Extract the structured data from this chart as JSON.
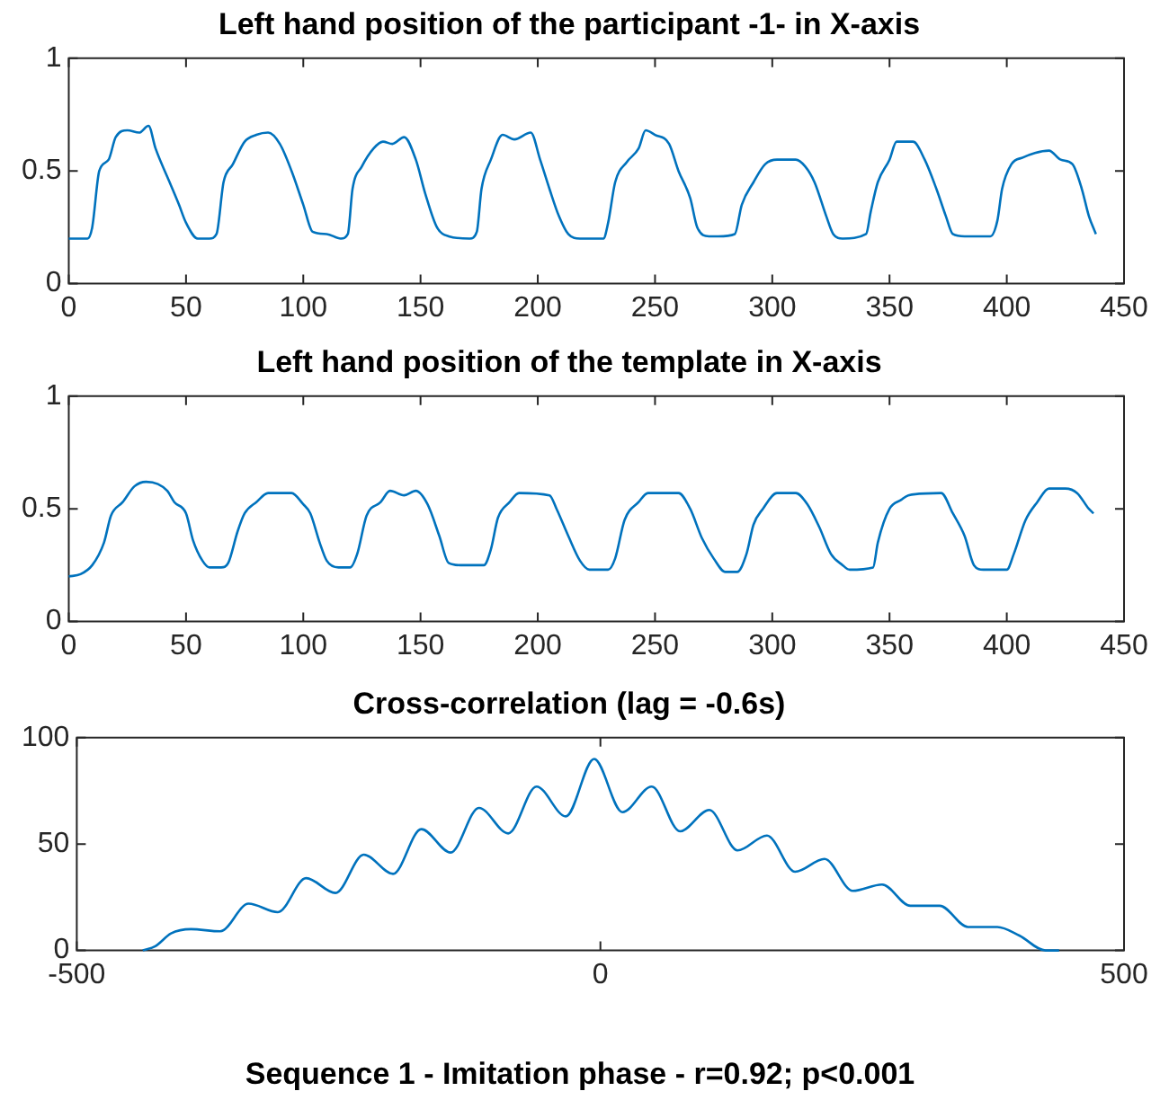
{
  "chart_data": [
    {
      "type": "line",
      "title": "Left hand position of the participant -1- in X-axis",
      "xlim": [
        0,
        450
      ],
      "ylim": [
        0,
        1
      ],
      "xticks": [
        0,
        50,
        100,
        150,
        200,
        250,
        300,
        350,
        400,
        450
      ],
      "yticks": [
        0,
        0.5,
        1
      ],
      "series": [
        {
          "color": "#0072bd",
          "x": [
            0,
            8,
            10,
            13,
            17,
            20,
            25,
            30,
            34,
            37,
            43,
            47,
            50,
            55,
            60,
            63,
            66,
            70,
            75,
            80,
            85,
            90,
            95,
            100,
            104,
            110,
            116,
            119,
            121,
            125,
            130,
            134,
            138,
            143,
            148,
            152,
            157,
            162,
            171,
            174,
            176,
            180,
            185,
            190,
            197,
            201,
            205,
            209,
            213,
            218,
            228,
            230,
            233,
            238,
            243,
            246,
            250,
            256,
            260,
            265,
            268,
            273,
            277,
            284,
            287,
            292,
            297,
            302,
            310,
            314,
            318,
            323,
            326,
            330,
            340,
            342,
            345,
            350,
            353,
            360,
            365,
            370,
            374,
            377,
            382,
            393,
            396,
            398,
            402,
            407,
            412,
            418,
            423,
            428,
            432,
            435,
            438
          ],
          "values": [
            0.2,
            0.2,
            0.25,
            0.5,
            0.55,
            0.65,
            0.68,
            0.67,
            0.7,
            0.6,
            0.45,
            0.35,
            0.27,
            0.2,
            0.2,
            0.22,
            0.45,
            0.53,
            0.63,
            0.66,
            0.67,
            0.62,
            0.5,
            0.35,
            0.23,
            0.22,
            0.2,
            0.22,
            0.42,
            0.52,
            0.6,
            0.63,
            0.62,
            0.65,
            0.55,
            0.4,
            0.25,
            0.21,
            0.2,
            0.23,
            0.42,
            0.55,
            0.66,
            0.64,
            0.67,
            0.55,
            0.42,
            0.3,
            0.22,
            0.2,
            0.2,
            0.27,
            0.45,
            0.54,
            0.6,
            0.68,
            0.66,
            0.62,
            0.5,
            0.38,
            0.25,
            0.21,
            0.21,
            0.22,
            0.35,
            0.45,
            0.53,
            0.55,
            0.55,
            0.52,
            0.45,
            0.3,
            0.22,
            0.2,
            0.22,
            0.32,
            0.45,
            0.55,
            0.63,
            0.63,
            0.55,
            0.42,
            0.3,
            0.22,
            0.21,
            0.21,
            0.28,
            0.42,
            0.53,
            0.56,
            0.58,
            0.59,
            0.55,
            0.53,
            0.42,
            0.3,
            0.22
          ]
        }
      ]
    },
    {
      "type": "line",
      "title": "Left hand position of the template in X-axis",
      "xlim": [
        0,
        450
      ],
      "ylim": [
        0,
        1
      ],
      "xticks": [
        0,
        50,
        100,
        150,
        200,
        250,
        300,
        350,
        400,
        450
      ],
      "yticks": [
        0,
        0.5,
        1
      ],
      "series": [
        {
          "color": "#0072bd",
          "x": [
            0,
            5,
            10,
            15,
            18,
            23,
            28,
            33,
            38,
            42,
            45,
            50,
            53,
            57,
            60,
            65,
            68,
            72,
            75,
            80,
            85,
            95,
            100,
            103,
            107,
            110,
            115,
            120,
            123,
            127,
            133,
            137,
            143,
            148,
            153,
            158,
            162,
            167,
            177,
            180,
            183,
            188,
            192,
            205,
            208,
            213,
            218,
            222,
            230,
            233,
            237,
            243,
            247,
            255,
            260,
            265,
            270,
            275,
            280,
            285,
            289,
            292,
            296,
            302,
            310,
            315,
            320,
            325,
            330,
            333,
            343,
            345,
            350,
            355,
            358,
            372,
            377,
            382,
            386,
            390,
            400,
            403,
            408,
            413,
            418,
            425,
            430,
            435,
            437
          ],
          "values": [
            0.2,
            0.21,
            0.25,
            0.35,
            0.47,
            0.53,
            0.6,
            0.62,
            0.61,
            0.58,
            0.53,
            0.48,
            0.36,
            0.27,
            0.24,
            0.24,
            0.26,
            0.4,
            0.48,
            0.53,
            0.57,
            0.57,
            0.52,
            0.48,
            0.35,
            0.27,
            0.24,
            0.24,
            0.3,
            0.47,
            0.53,
            0.58,
            0.56,
            0.58,
            0.52,
            0.38,
            0.26,
            0.25,
            0.25,
            0.32,
            0.46,
            0.53,
            0.57,
            0.56,
            0.5,
            0.38,
            0.27,
            0.23,
            0.23,
            0.28,
            0.45,
            0.53,
            0.57,
            0.57,
            0.57,
            0.5,
            0.37,
            0.28,
            0.22,
            0.22,
            0.3,
            0.43,
            0.5,
            0.57,
            0.57,
            0.52,
            0.42,
            0.3,
            0.25,
            0.23,
            0.24,
            0.35,
            0.5,
            0.54,
            0.56,
            0.57,
            0.48,
            0.38,
            0.25,
            0.23,
            0.23,
            0.3,
            0.45,
            0.53,
            0.59,
            0.59,
            0.57,
            0.5,
            0.48
          ]
        }
      ]
    },
    {
      "type": "line",
      "title": "Cross-correlation (lag = -0.6s)",
      "xlim": [
        -500,
        500
      ],
      "ylim": [
        0,
        100
      ],
      "xticks": [
        -500,
        0,
        500
      ],
      "yticks": [
        0,
        50,
        100
      ],
      "annotations": [
        "Sequence 1 - Imitation phase - r=0.92; p<0.001"
      ],
      "series": [
        {
          "color": "#0072bd",
          "x": [
            -437,
            -425,
            -410,
            -391,
            -363,
            -336,
            -308,
            -281,
            -253,
            -226,
            -198,
            -171,
            -143,
            -116,
            -88,
            -61,
            -33,
            -6,
            21,
            49,
            76,
            104,
            131,
            159,
            186,
            214,
            241,
            269,
            296,
            324,
            351,
            379,
            400,
            425,
            438
          ],
          "values": [
            0,
            2,
            8,
            10,
            9,
            22,
            18,
            34,
            27,
            45,
            36,
            57,
            46,
            67,
            55,
            77,
            63,
            90,
            65,
            77,
            56,
            66,
            47,
            54,
            37,
            43,
            28,
            31,
            21,
            21,
            11,
            11,
            7,
            0,
            0
          ]
        }
      ]
    }
  ]
}
